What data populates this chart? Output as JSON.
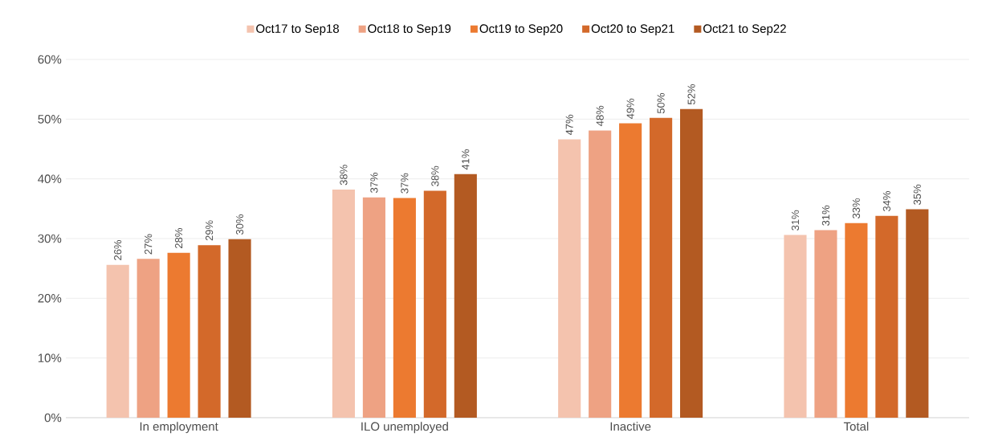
{
  "chart_data": {
    "type": "bar",
    "categories": [
      "In employment",
      "ILO unemployed",
      "Inactive",
      "Total"
    ],
    "series": [
      {
        "name": "Oct17 to Sep18",
        "color": "#f4c3ae",
        "values": [
          25.6,
          38.2,
          46.6,
          30.6
        ],
        "value_labels": [
          "26%",
          "38%",
          "47%",
          "31%"
        ]
      },
      {
        "name": "Oct18 to Sep19",
        "color": "#eea283",
        "values": [
          26.6,
          36.9,
          48.1,
          31.4
        ],
        "value_labels": [
          "27%",
          "37%",
          "48%",
          "31%"
        ]
      },
      {
        "name": "Oct19 to Sep20",
        "color": "#ec7a30",
        "values": [
          27.6,
          36.8,
          49.3,
          32.6
        ],
        "value_labels": [
          "28%",
          "37%",
          "49%",
          "33%"
        ]
      },
      {
        "name": "Oct20 to Sep21",
        "color": "#d3692a",
        "values": [
          28.9,
          38.0,
          50.2,
          33.8
        ],
        "value_labels": [
          "29%",
          "38%",
          "50%",
          "34%"
        ]
      },
      {
        "name": "Oct21 to Sep22",
        "color": "#b35a22",
        "values": [
          29.9,
          40.8,
          51.7,
          34.9
        ],
        "value_labels": [
          "30%",
          "41%",
          "52%",
          "35%"
        ]
      }
    ],
    "ylim": [
      0,
      60
    ],
    "yticks": [
      {
        "value": 0,
        "label": "0%"
      },
      {
        "value": 10,
        "label": "10%"
      },
      {
        "value": 20,
        "label": "20%"
      },
      {
        "value": 30,
        "label": "30%"
      },
      {
        "value": 40,
        "label": "40%"
      },
      {
        "value": 50,
        "label": "50%"
      },
      {
        "value": 60,
        "label": "60%"
      }
    ],
    "grid": "y",
    "legend": "top"
  }
}
